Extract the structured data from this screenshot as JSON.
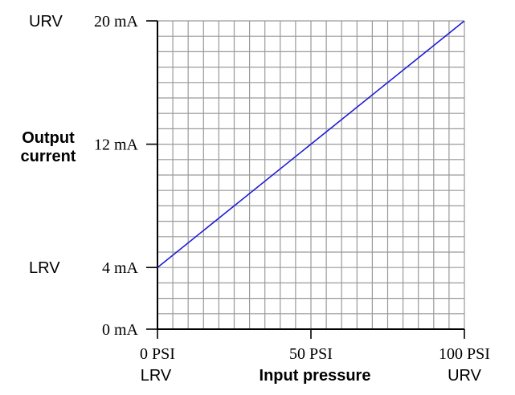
{
  "chart_data": {
    "type": "line",
    "xlabel": "Input pressure",
    "ylabel_line1": "Output",
    "ylabel_line2": "current",
    "xlim": [
      0,
      100
    ],
    "ylim": [
      0,
      20
    ],
    "x_ticks": [
      {
        "value": 0,
        "label": "0 PSI"
      },
      {
        "value": 50,
        "label": "50 PSI"
      },
      {
        "value": 100,
        "label": "100 PSI"
      }
    ],
    "y_ticks": [
      {
        "value": 0,
        "label": "0 mA"
      },
      {
        "value": 4,
        "label": "4 mA"
      },
      {
        "value": 12,
        "label": "12 mA"
      },
      {
        "value": 20,
        "label": "20 mA"
      }
    ],
    "x_range_labels": {
      "lrv": "LRV",
      "urv": "URV"
    },
    "y_range_labels": {
      "lrv": "LRV",
      "urv": "URV"
    },
    "grid": true,
    "grid_x_divisions": 20,
    "grid_y_divisions": 20,
    "series": [
      {
        "x": [
          0,
          100
        ],
        "y": [
          4,
          20
        ],
        "color": "#1f1fd6"
      }
    ],
    "grid_color": "#9a9a9a",
    "axis_color": "#000000"
  }
}
